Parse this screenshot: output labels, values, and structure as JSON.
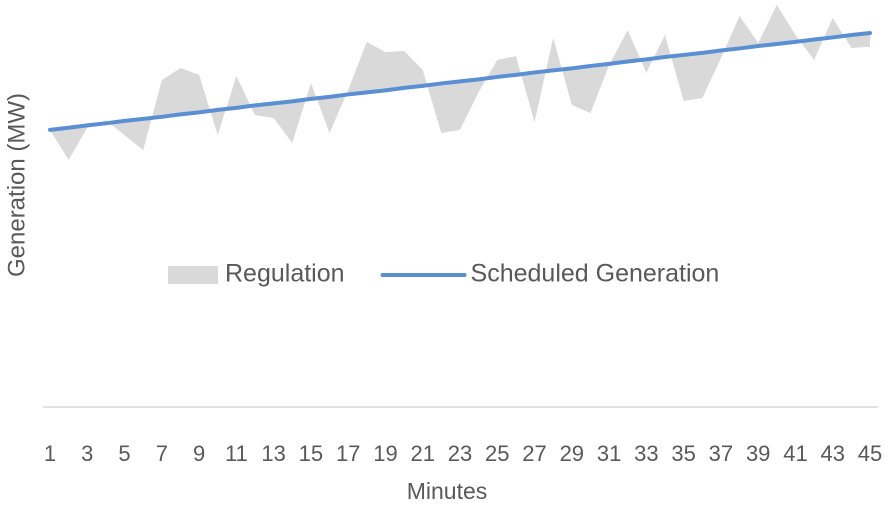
{
  "chart_data": {
    "type": "band_line",
    "x_label": "Minutes",
    "y_label": "Generation (MW)",
    "categories": [
      1,
      null,
      3,
      null,
      5,
      null,
      7,
      null,
      9,
      null,
      11,
      null,
      13,
      null,
      15,
      null,
      17,
      null,
      19,
      null,
      21,
      null,
      23,
      null,
      25,
      null,
      27,
      null,
      29,
      null,
      31,
      null,
      33,
      null,
      35,
      null,
      37,
      null,
      39,
      null,
      41,
      null,
      43,
      null,
      45
    ],
    "series": [
      {
        "name": "Regulation",
        "color": "#d9d9d9",
        "kind": "area",
        "base": 1,
        "values": [
          68.1,
          60.7,
          68.6,
          70.5,
          66.8,
          63.1,
          80.3,
          83.3,
          81.6,
          66.8,
          81.3,
          71.7,
          71.0,
          64.9,
          79.6,
          67.3,
          77.9,
          89.7,
          87.2,
          87.5,
          82.8,
          67.3,
          68.1,
          77.4,
          85.3,
          86.2,
          70.0,
          90.7,
          74.2,
          72.2,
          84.0,
          92.6,
          82.1,
          91.4,
          75.2,
          75.9,
          85.7,
          96.1,
          89.4,
          98.8,
          91.4,
          85.3,
          95.6,
          88.2,
          88.5
        ]
      },
      {
        "name": "Scheduled Generation",
        "color": "#5b8fd4",
        "kind": "line",
        "values": [
          68.1,
          68.6,
          69.2,
          69.7,
          70.3,
          70.8,
          71.3,
          71.9,
          72.4,
          73.0,
          73.5,
          74.1,
          74.6,
          75.1,
          75.7,
          76.2,
          76.8,
          77.3,
          77.8,
          78.4,
          78.9,
          79.5,
          80.0,
          80.5,
          81.1,
          81.6,
          82.2,
          82.7,
          83.2,
          83.8,
          84.3,
          84.9,
          85.4,
          86.0,
          86.5,
          87.0,
          87.6,
          88.1,
          88.7,
          89.2,
          89.7,
          90.3,
          90.8,
          91.4,
          91.9
        ]
      }
    ],
    "ylim": [
      0,
      100
    ],
    "legend": "center",
    "grid": false
  }
}
